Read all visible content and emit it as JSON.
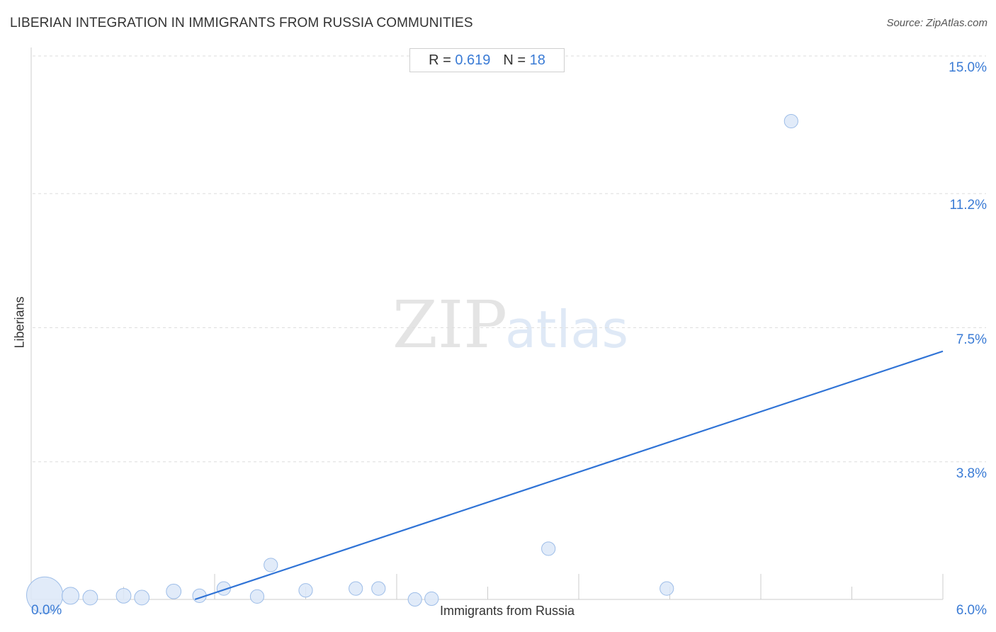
{
  "chart_data": {
    "type": "scatter",
    "title": "LIBERIAN INTEGRATION IN IMMIGRANTS FROM RUSSIA COMMUNITIES",
    "source": "Source: ZipAtlas.com",
    "xlabel": "Immigrants from Russia",
    "ylabel": "Liberians",
    "xlim": [
      0.0,
      6.0
    ],
    "ylim": [
      0.0,
      15.0
    ],
    "x_tick_labels": [
      {
        "value": 0.0,
        "label": "0.0%"
      },
      {
        "value": 6.0,
        "label": "6.0%"
      }
    ],
    "y_tick_labels": [
      {
        "value": 15.0,
        "label": "15.0%"
      },
      {
        "value": 11.2,
        "label": "11.2%"
      },
      {
        "value": 7.5,
        "label": "7.5%"
      },
      {
        "value": 3.8,
        "label": "3.8%"
      }
    ],
    "stats": {
      "r_label": "R =",
      "r_value": "0.619",
      "n_label": "N =",
      "n_value": "18"
    },
    "points": [
      {
        "x": 0.08,
        "y": 0.12,
        "size": 3.2
      },
      {
        "x": 0.25,
        "y": 0.1,
        "size": 1.5
      },
      {
        "x": 0.38,
        "y": 0.05,
        "size": 1.3
      },
      {
        "x": 0.6,
        "y": 0.1,
        "size": 1.3
      },
      {
        "x": 0.72,
        "y": 0.05,
        "size": 1.3
      },
      {
        "x": 0.93,
        "y": 0.22,
        "size": 1.3
      },
      {
        "x": 1.1,
        "y": 0.1,
        "size": 1.2
      },
      {
        "x": 1.26,
        "y": 0.3,
        "size": 1.2
      },
      {
        "x": 1.48,
        "y": 0.08,
        "size": 1.2
      },
      {
        "x": 1.57,
        "y": 0.95,
        "size": 1.2
      },
      {
        "x": 1.8,
        "y": 0.25,
        "size": 1.2
      },
      {
        "x": 2.13,
        "y": 0.3,
        "size": 1.2
      },
      {
        "x": 2.28,
        "y": 0.3,
        "size": 1.2
      },
      {
        "x": 2.52,
        "y": 0.0,
        "size": 1.2
      },
      {
        "x": 2.63,
        "y": 0.02,
        "size": 1.2
      },
      {
        "x": 3.4,
        "y": 1.4,
        "size": 1.2
      },
      {
        "x": 4.18,
        "y": 0.3,
        "size": 1.2
      },
      {
        "x": 5.0,
        "y": 13.2,
        "size": 1.2
      }
    ],
    "trendline": {
      "x": [
        1.07,
        6.0
      ],
      "y": [
        0.0,
        6.85
      ]
    },
    "grid": "horizontal-dashed",
    "colors": {
      "point_fill": "#dce8f8",
      "point_stroke": "#9dbde8",
      "trendline": "#2f73d6",
      "tick_label": "#3a7bd5",
      "grid": "#dedede"
    },
    "watermark": {
      "part1": "ZIP",
      "part2": "atlas"
    }
  }
}
